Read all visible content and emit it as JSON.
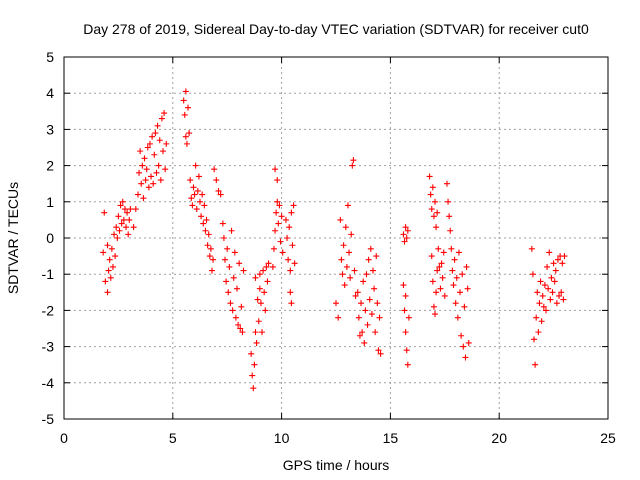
{
  "chart_data": {
    "type": "scatter",
    "title": "Day 278 of 2019, Sidereal Day-to-day VTEC variation (SDTVAR) for receiver cut0",
    "xlabel": "GPS time / hours",
    "ylabel": "SDTVAR / TECUs",
    "xlim": [
      0,
      25
    ],
    "ylim": [
      -5,
      5
    ],
    "xticks": [
      0,
      5,
      10,
      15,
      20,
      25
    ],
    "yticks": [
      -5,
      -4,
      -3,
      -2,
      -1,
      0,
      1,
      2,
      3,
      4,
      5
    ],
    "grid": true,
    "marker": "+",
    "color": "#ff0000",
    "series": [
      {
        "name": "SDTVAR",
        "points": [
          [
            1.8,
            -0.4
          ],
          [
            1.9,
            -1.2
          ],
          [
            2.0,
            -1.5
          ],
          [
            2.05,
            -0.9
          ],
          [
            2.1,
            -0.6
          ],
          [
            2.15,
            -1.1
          ],
          [
            2.2,
            -0.3
          ],
          [
            2.25,
            -0.8
          ],
          [
            2.3,
            0.1
          ],
          [
            2.35,
            -0.5
          ],
          [
            2.4,
            0.3
          ],
          [
            2.45,
            0.0
          ],
          [
            2.5,
            0.6
          ],
          [
            2.55,
            0.2
          ],
          [
            2.6,
            0.9
          ],
          [
            2.65,
            0.4
          ],
          [
            2.7,
            1.0
          ],
          [
            2.75,
            0.5
          ],
          [
            2.8,
            0.8
          ],
          [
            2.85,
            0.3
          ],
          [
            2.9,
            0.7
          ],
          [
            2.95,
            0.1
          ],
          [
            3.0,
            0.5
          ],
          [
            3.05,
            0.8
          ],
          [
            1.85,
            0.7
          ],
          [
            2.0,
            -0.2
          ],
          [
            3.2,
            0.3
          ],
          [
            3.3,
            0.8
          ],
          [
            3.4,
            1.2
          ],
          [
            3.45,
            1.8
          ],
          [
            3.5,
            2.4
          ],
          [
            3.55,
            1.5
          ],
          [
            3.6,
            2.0
          ],
          [
            3.65,
            1.1
          ],
          [
            3.7,
            2.2
          ],
          [
            3.75,
            1.6
          ],
          [
            3.8,
            1.9
          ],
          [
            3.85,
            2.5
          ],
          [
            3.9,
            1.4
          ],
          [
            3.95,
            2.6
          ],
          [
            4.0,
            1.7
          ],
          [
            4.05,
            2.8
          ],
          [
            4.1,
            1.5
          ],
          [
            4.15,
            2.3
          ],
          [
            4.2,
            2.9
          ],
          [
            4.25,
            1.8
          ],
          [
            4.3,
            3.1
          ],
          [
            4.35,
            2.0
          ],
          [
            4.4,
            2.7
          ],
          [
            4.45,
            1.6
          ],
          [
            4.5,
            3.3
          ],
          [
            4.55,
            2.4
          ],
          [
            4.6,
            3.45
          ],
          [
            4.65,
            1.9
          ],
          [
            4.7,
            2.6
          ],
          [
            5.5,
            3.8
          ],
          [
            5.55,
            3.4
          ],
          [
            5.6,
            4.05
          ],
          [
            5.6,
            2.8
          ],
          [
            5.65,
            2.6
          ],
          [
            5.7,
            3.6
          ],
          [
            5.75,
            2.9
          ],
          [
            5.8,
            1.6
          ],
          [
            5.85,
            1.1
          ],
          [
            5.9,
            0.9
          ],
          [
            5.95,
            1.4
          ],
          [
            6.0,
            1.2
          ],
          [
            6.05,
            2.0
          ],
          [
            6.1,
            0.8
          ],
          [
            6.15,
            1.3
          ],
          [
            6.2,
            1.7
          ],
          [
            6.25,
            1.0
          ],
          [
            6.3,
            0.6
          ],
          [
            6.35,
            1.2
          ],
          [
            6.4,
            0.4
          ],
          [
            6.45,
            0.9
          ],
          [
            6.5,
            0.2
          ],
          [
            6.55,
            0.5
          ],
          [
            6.6,
            -0.2
          ],
          [
            6.65,
            0.1
          ],
          [
            6.7,
            -0.5
          ],
          [
            6.75,
            -0.3
          ],
          [
            6.8,
            -0.9
          ],
          [
            6.85,
            -0.6
          ],
          [
            6.9,
            1.9
          ],
          [
            7.0,
            1.6
          ],
          [
            7.1,
            1.3
          ],
          [
            7.2,
            1.2
          ],
          [
            7.3,
            0.4
          ],
          [
            7.35,
            0.0
          ],
          [
            7.4,
            -0.6
          ],
          [
            7.45,
            -1.2
          ],
          [
            7.5,
            -0.3
          ],
          [
            7.55,
            -1.5
          ],
          [
            7.6,
            -0.8
          ],
          [
            7.65,
            -1.8
          ],
          [
            7.7,
            0.2
          ],
          [
            7.75,
            -2.0
          ],
          [
            7.8,
            -1.1
          ],
          [
            7.85,
            -0.4
          ],
          [
            7.9,
            -2.2
          ],
          [
            7.95,
            -1.4
          ],
          [
            8.0,
            -2.4
          ],
          [
            8.05,
            -0.7
          ],
          [
            8.1,
            -2.5
          ],
          [
            8.15,
            -1.9
          ],
          [
            8.2,
            -2.6
          ],
          [
            8.25,
            -0.9
          ],
          [
            8.6,
            -3.2
          ],
          [
            8.65,
            -3.8
          ],
          [
            8.7,
            -4.15
          ],
          [
            8.75,
            -3.5
          ],
          [
            8.8,
            -2.6
          ],
          [
            8.85,
            -2.9
          ],
          [
            8.9,
            -1.7
          ],
          [
            8.95,
            -2.3
          ],
          [
            9.0,
            -1.0
          ],
          [
            9.05,
            -1.8
          ],
          [
            9.1,
            -2.6
          ],
          [
            9.15,
            -0.9
          ],
          [
            9.2,
            -1.5
          ],
          [
            9.25,
            -2.0
          ],
          [
            9.3,
            -0.8
          ],
          [
            9.35,
            -1.2
          ],
          [
            9.4,
            -0.7
          ],
          [
            8.8,
            -1.1
          ],
          [
            9.0,
            -1.4
          ],
          [
            9.6,
            -0.8
          ],
          [
            9.65,
            -0.3
          ],
          [
            9.7,
            0.2
          ],
          [
            9.75,
            0.7
          ],
          [
            9.8,
            1.0
          ],
          [
            9.85,
            0.4
          ],
          [
            9.9,
            0.9
          ],
          [
            9.95,
            -0.1
          ],
          [
            10.0,
            0.6
          ],
          [
            10.05,
            -0.4
          ],
          [
            9.7,
            1.9
          ],
          [
            9.8,
            1.6
          ],
          [
            10.2,
            0.5
          ],
          [
            10.25,
            0.0
          ],
          [
            10.3,
            -0.6
          ],
          [
            10.35,
            0.3
          ],
          [
            10.4,
            -0.9
          ],
          [
            10.45,
            0.7
          ],
          [
            10.5,
            -0.2
          ],
          [
            10.55,
            0.9
          ],
          [
            10.6,
            -0.7
          ],
          [
            10.4,
            -1.5
          ],
          [
            10.45,
            -1.8
          ],
          [
            12.5,
            -1.8
          ],
          [
            12.6,
            -2.2
          ],
          [
            12.7,
            0.5
          ],
          [
            12.75,
            -0.6
          ],
          [
            12.8,
            -1.0
          ],
          [
            12.85,
            -0.2
          ],
          [
            12.9,
            -1.3
          ],
          [
            12.95,
            0.3
          ],
          [
            13.0,
            -0.8
          ],
          [
            13.05,
            0.9
          ],
          [
            13.1,
            -0.4
          ],
          [
            13.15,
            -1.1
          ],
          [
            13.2,
            0.1
          ],
          [
            13.25,
            2.0
          ],
          [
            13.3,
            2.15
          ],
          [
            13.35,
            -0.9
          ],
          [
            13.4,
            -1.6
          ],
          [
            13.5,
            -1.5
          ],
          [
            13.55,
            -2.2
          ],
          [
            13.6,
            -2.7
          ],
          [
            13.65,
            -1.8
          ],
          [
            13.7,
            -2.6
          ],
          [
            13.75,
            -1.2
          ],
          [
            13.8,
            -2.9
          ],
          [
            13.85,
            -2.0
          ],
          [
            13.9,
            -1.0
          ],
          [
            13.95,
            -2.4
          ],
          [
            14.0,
            -0.6
          ],
          [
            14.05,
            -1.7
          ],
          [
            14.1,
            -0.3
          ],
          [
            14.15,
            -2.1
          ],
          [
            14.2,
            -0.9
          ],
          [
            14.25,
            -1.4
          ],
          [
            14.3,
            -2.6
          ],
          [
            14.35,
            -0.5
          ],
          [
            14.4,
            -1.8
          ],
          [
            14.45,
            -3.1
          ],
          [
            14.5,
            -2.2
          ],
          [
            14.55,
            -3.2
          ],
          [
            15.6,
            0.1
          ],
          [
            15.65,
            -0.1
          ],
          [
            15.7,
            0.3
          ],
          [
            15.75,
            0.0
          ],
          [
            15.8,
            0.2
          ],
          [
            15.6,
            -1.3
          ],
          [
            15.65,
            -2.0
          ],
          [
            15.7,
            -2.6
          ],
          [
            15.75,
            -3.1
          ],
          [
            15.8,
            -3.5
          ],
          [
            15.85,
            -2.2
          ],
          [
            15.7,
            -1.6
          ],
          [
            16.8,
            1.7
          ],
          [
            16.85,
            1.2
          ],
          [
            16.9,
            0.8
          ],
          [
            16.95,
            1.4
          ],
          [
            17.0,
            0.6
          ],
          [
            17.05,
            1.0
          ],
          [
            17.1,
            0.3
          ],
          [
            17.15,
            0.7
          ],
          [
            17.2,
            -0.3
          ],
          [
            17.25,
            -0.8
          ],
          [
            16.9,
            -0.5
          ],
          [
            16.95,
            -1.2
          ],
          [
            17.0,
            -1.9
          ],
          [
            17.05,
            -2.1
          ],
          [
            17.1,
            -1.5
          ],
          [
            17.15,
            -0.9
          ],
          [
            17.3,
            -1.4
          ],
          [
            17.35,
            -0.7
          ],
          [
            17.4,
            -1.1
          ],
          [
            17.45,
            -0.4
          ],
          [
            17.5,
            -1.6
          ],
          [
            17.6,
            1.5
          ],
          [
            17.65,
            1.0
          ],
          [
            17.7,
            0.6
          ],
          [
            17.75,
            0.2
          ],
          [
            17.8,
            -0.3
          ],
          [
            17.85,
            -0.9
          ],
          [
            17.9,
            -1.3
          ],
          [
            17.95,
            -0.6
          ],
          [
            18.0,
            -1.8
          ],
          [
            18.05,
            -1.1
          ],
          [
            18.1,
            -2.2
          ],
          [
            18.15,
            -0.4
          ],
          [
            18.2,
            -1.5
          ],
          [
            18.25,
            -2.7
          ],
          [
            18.3,
            -1.0
          ],
          [
            18.35,
            -3.0
          ],
          [
            18.4,
            -1.9
          ],
          [
            18.45,
            -3.3
          ],
          [
            18.5,
            -0.8
          ],
          [
            18.55,
            -1.4
          ],
          [
            18.6,
            -2.9
          ],
          [
            21.5,
            -0.3
          ],
          [
            21.55,
            -1.0
          ],
          [
            21.6,
            -2.8
          ],
          [
            21.65,
            -3.5
          ],
          [
            21.7,
            -2.2
          ],
          [
            21.75,
            -1.5
          ],
          [
            21.8,
            -2.6
          ],
          [
            21.85,
            -1.8
          ],
          [
            21.9,
            -1.2
          ],
          [
            21.95,
            -2.3
          ],
          [
            22.0,
            -1.6
          ],
          [
            22.05,
            -1.9
          ],
          [
            22.1,
            -1.3
          ],
          [
            22.15,
            -2.0
          ],
          [
            22.2,
            -0.8
          ],
          [
            22.25,
            -1.4
          ],
          [
            22.3,
            -0.4
          ],
          [
            22.35,
            -1.7
          ],
          [
            22.4,
            -1.1
          ],
          [
            22.45,
            -1.5
          ],
          [
            22.5,
            -0.7
          ],
          [
            22.55,
            -1.2
          ],
          [
            22.6,
            -0.9
          ],
          [
            22.65,
            -1.8
          ],
          [
            22.7,
            -0.6
          ],
          [
            22.75,
            -1.6
          ],
          [
            22.8,
            -0.5
          ],
          [
            22.85,
            -1.5
          ],
          [
            22.9,
            -0.7
          ],
          [
            22.95,
            -1.7
          ],
          [
            23.0,
            -0.5
          ]
        ]
      }
    ]
  }
}
